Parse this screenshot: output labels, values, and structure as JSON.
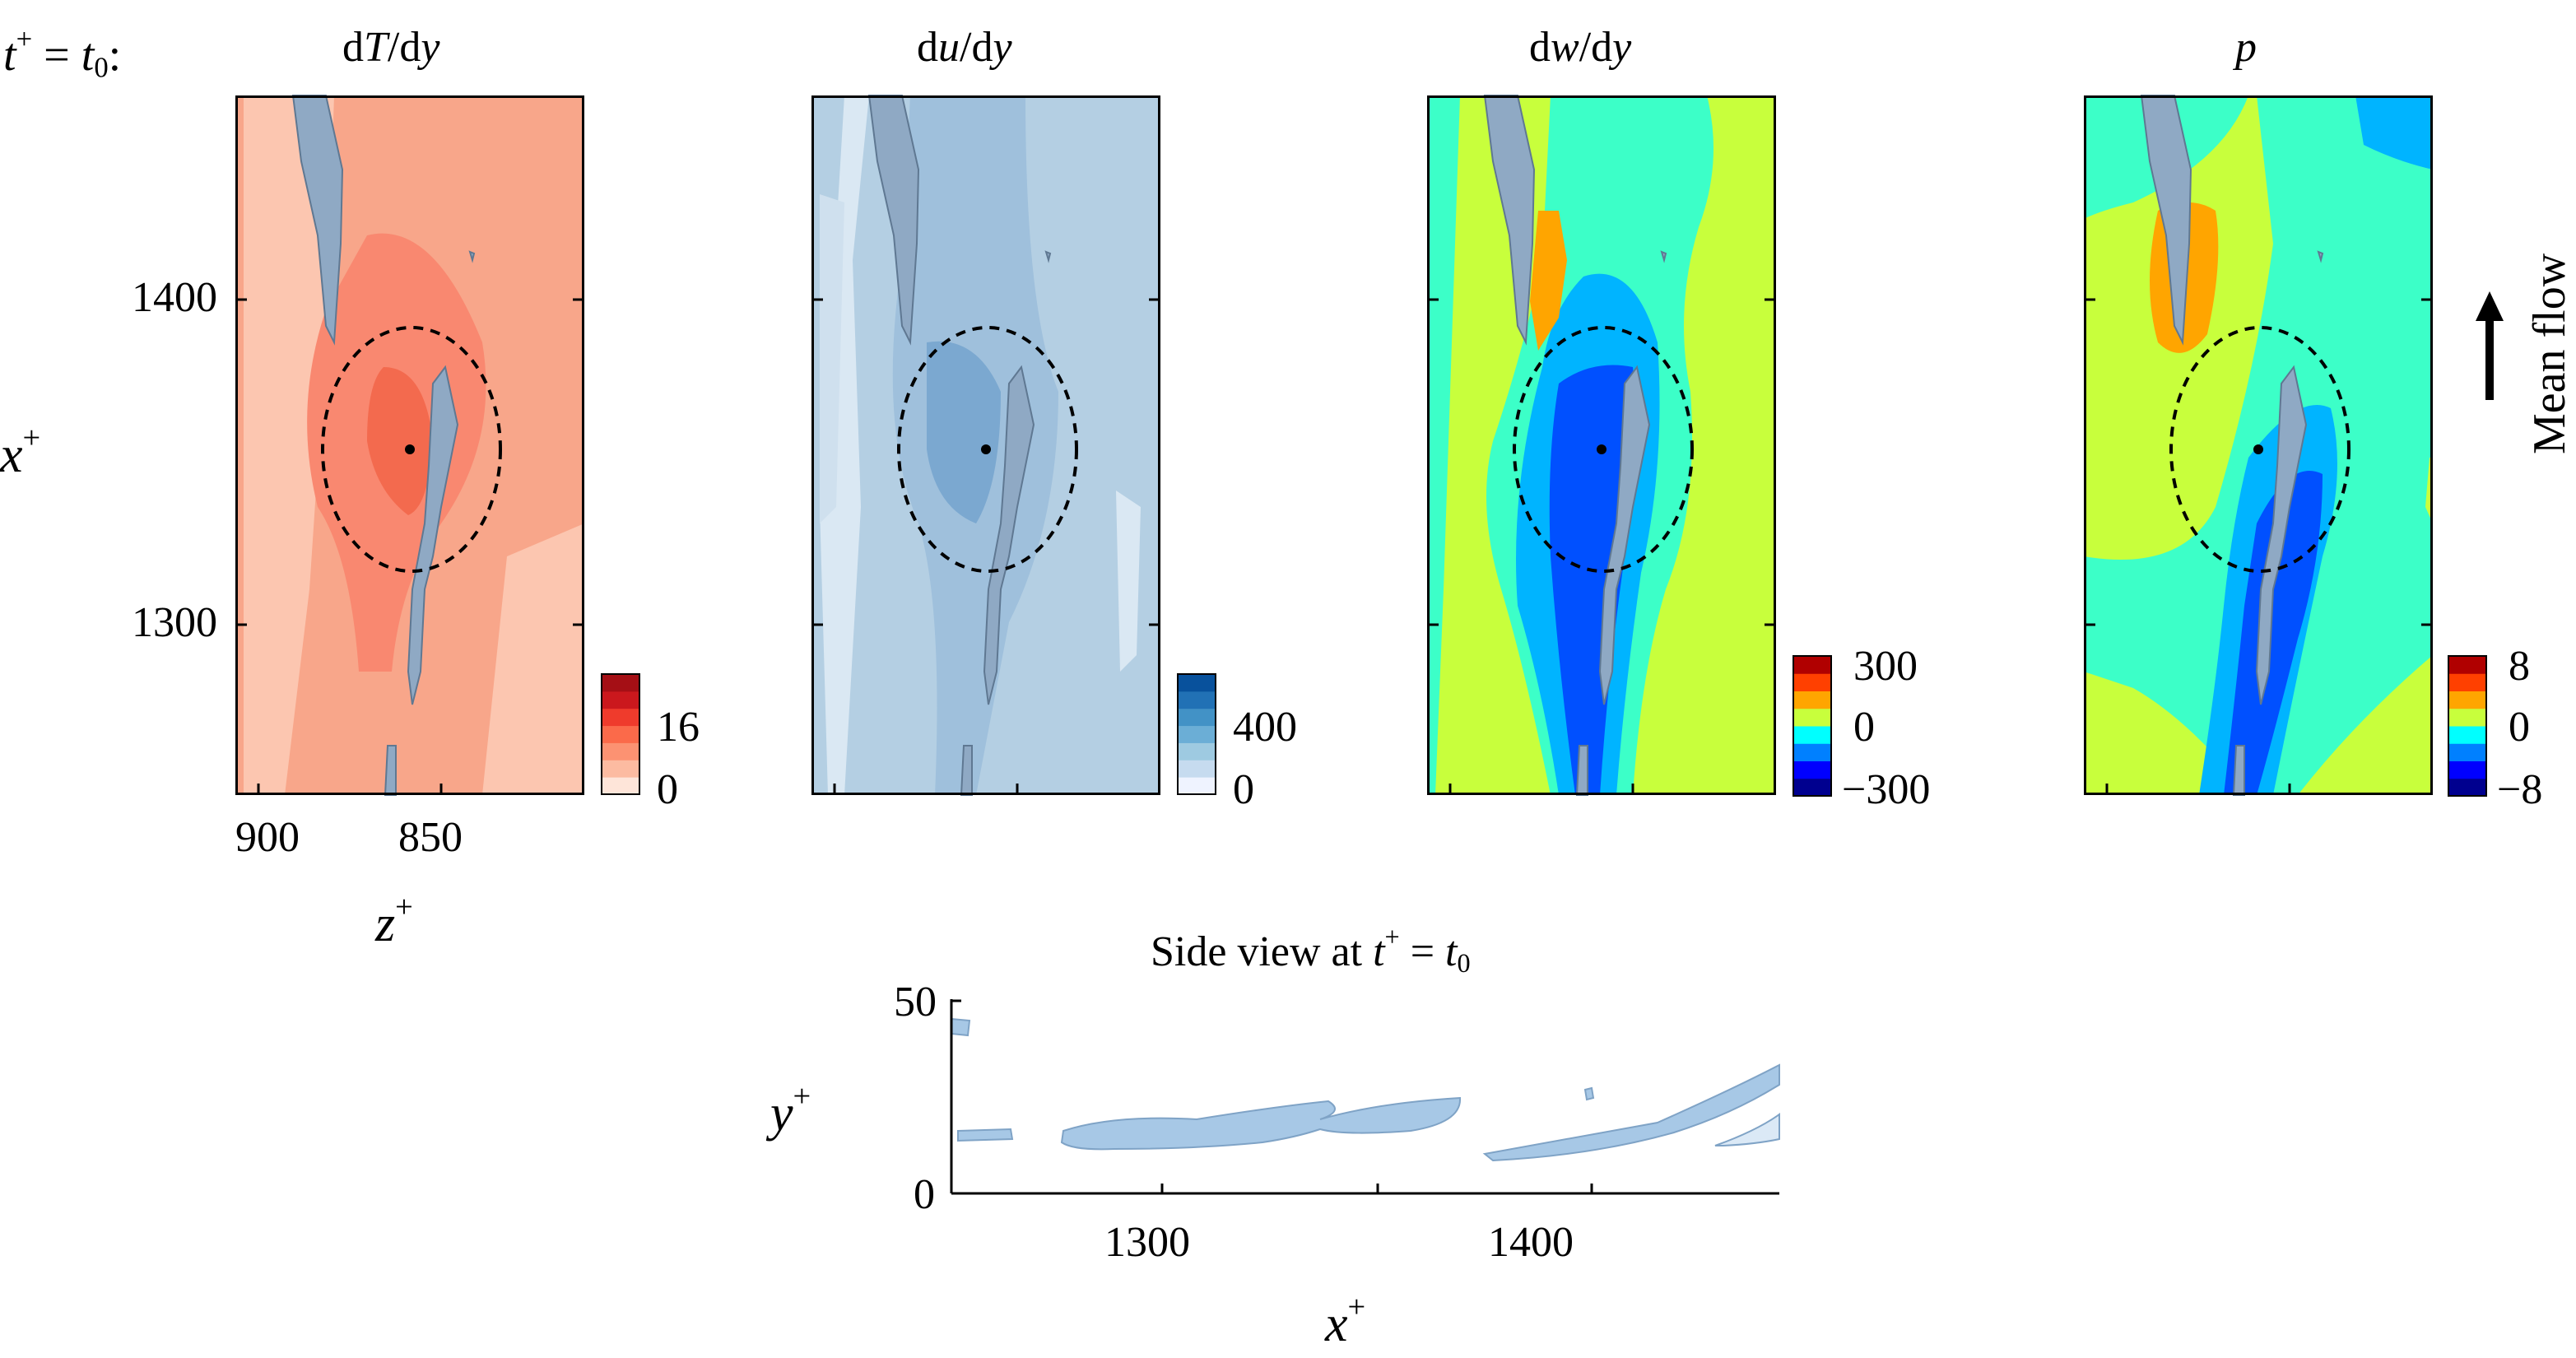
{
  "figure": {
    "time_label_t": "t",
    "time_label_sup": "+",
    "time_label_eq": " = ",
    "time_label_t0": "t",
    "time_label_sub": "0",
    "time_label_colon": ":"
  },
  "panels": [
    {
      "id": "dTdy",
      "title_pre": "d",
      "title_var": "T",
      "title_post": "/d",
      "title_y": "y",
      "colormap": "reds",
      "cbar_ticks": [
        "16",
        "0"
      ],
      "fill": "#f8a68a"
    },
    {
      "id": "dudy",
      "title_pre": "d",
      "title_var": "u",
      "title_post": "/d",
      "title_y": "y",
      "colormap": "blues",
      "cbar_ticks": [
        "400",
        "0"
      ],
      "fill": "#b4cfe3"
    },
    {
      "id": "dwdy",
      "title_pre": "d",
      "title_var": "w",
      "title_post": "/d",
      "title_y": "y",
      "colormap": "jet",
      "cbar_ticks": [
        "300",
        "0",
        "−300"
      ],
      "fill": "#c8ff3c"
    },
    {
      "id": "p",
      "title_pre": "",
      "title_var": "p",
      "title_post": "",
      "title_y": "",
      "colormap": "jet",
      "cbar_ticks": [
        "8",
        "0",
        "−8"
      ],
      "fill": "#c8ff3c"
    }
  ],
  "axes": {
    "x_label": "x",
    "x_label_sup": "+",
    "z_label": "z",
    "z_label_sup": "+",
    "x_ticks": [
      "1400",
      "1300"
    ],
    "z_ticks": [
      "900",
      "850"
    ]
  },
  "mean_flow": {
    "label": "Mean flow"
  },
  "side_view": {
    "title_pre": "Side view at ",
    "title_t": "t",
    "title_sup": "+",
    "title_eq": " = ",
    "title_t0": "t",
    "title_sub": "0",
    "y_label": "y",
    "y_label_sup": "+",
    "x_label": "x",
    "x_label_sup": "+",
    "y_ticks": [
      "50",
      "0"
    ],
    "x_ticks": [
      "1300",
      "1400"
    ]
  },
  "colors": {
    "reds": [
      "#fee5d9",
      "#fcbba1",
      "#fc9272",
      "#fb6a4a",
      "#ef3b2c",
      "#cb181d",
      "#a50f15"
    ],
    "blues": [
      "#eff3ff",
      "#c6dbef",
      "#9ecae1",
      "#6baed6",
      "#4292c6",
      "#2171b5",
      "#08519c"
    ],
    "jet": [
      "#00008f",
      "#0000ff",
      "#0080ff",
      "#00ffff",
      "#c8ff3c",
      "#ffa500",
      "#ff4000",
      "#b00000"
    ],
    "structure": "#8fa9c4"
  },
  "chart_data": [
    {
      "type": "heatmap",
      "title": "dT/dy",
      "xlabel": "z+",
      "ylabel": "x+",
      "x_ticks": [
        900,
        850
      ],
      "y_ticks": [
        1400,
        1300
      ],
      "colorbar": {
        "min": 0,
        "ticks": [
          0,
          16
        ]
      }
    },
    {
      "type": "heatmap",
      "title": "du/dy",
      "xlabel": "z+",
      "ylabel": "x+",
      "x_ticks": [
        900,
        850
      ],
      "y_ticks": [
        1400,
        1300
      ],
      "colorbar": {
        "min": 0,
        "ticks": [
          0,
          400
        ]
      }
    },
    {
      "type": "heatmap",
      "title": "dw/dy",
      "xlabel": "z+",
      "ylabel": "x+",
      "x_ticks": [
        900,
        850
      ],
      "y_ticks": [
        1400,
        1300
      ],
      "colorbar": {
        "min": -300,
        "max": 300,
        "ticks": [
          -300,
          0,
          300
        ]
      }
    },
    {
      "type": "heatmap",
      "title": "p",
      "xlabel": "z+",
      "ylabel": "x+",
      "x_ticks": [
        900,
        850
      ],
      "y_ticks": [
        1400,
        1300
      ],
      "colorbar": {
        "min": -8,
        "max": 8,
        "ticks": [
          -8,
          0,
          8
        ]
      }
    },
    {
      "type": "scatter",
      "title": "Side view at t+ = t0",
      "xlabel": "x+",
      "ylabel": "y+",
      "x_ticks": [
        1300,
        1400
      ],
      "y_ticks": [
        0,
        50
      ],
      "xlim": [
        1250,
        1460
      ],
      "ylim": [
        0,
        50
      ]
    }
  ]
}
